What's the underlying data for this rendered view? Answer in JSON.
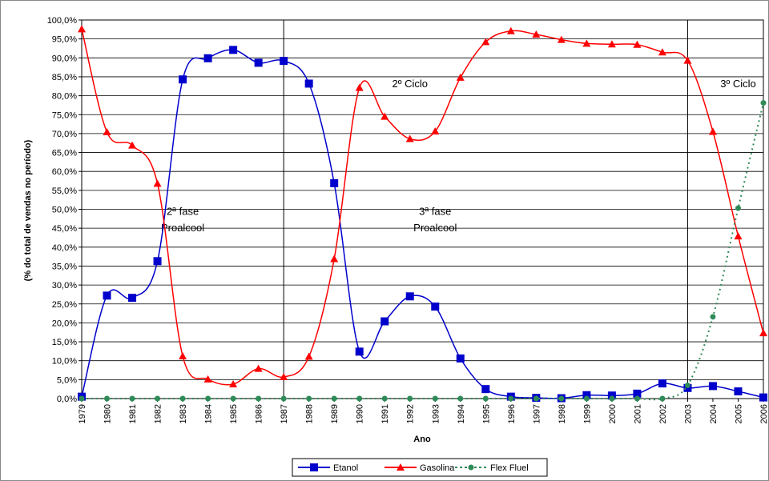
{
  "chart_data": {
    "type": "line",
    "title": "",
    "xlabel": "Ano",
    "ylabel": "(% do total de vendas no período)",
    "ylim": [
      0,
      100
    ],
    "y_step": 5,
    "grid": "horizontal",
    "legend_position": "bottom",
    "categories": [
      "1979",
      "1980",
      "1981",
      "1982",
      "1983",
      "1984",
      "1985",
      "1986",
      "1987",
      "1988",
      "1989",
      "1990",
      "1991",
      "1992",
      "1993",
      "1994",
      "1995",
      "1996",
      "1997",
      "1998",
      "1999",
      "2000",
      "2001",
      "2002",
      "2003",
      "2004",
      "2005",
      "2006"
    ],
    "y_tick_labels": [
      "0,0%",
      "5,0%",
      "10,0%",
      "15,0%",
      "20,0%",
      "25,0%",
      "30,0%",
      "35,0%",
      "40,0%",
      "45,0%",
      "50,0%",
      "55,0%",
      "60,0%",
      "65,0%",
      "70,0%",
      "75,0%",
      "80,0%",
      "85,0%",
      "90,0%",
      "95,0%",
      "100,0%"
    ],
    "series": [
      {
        "name": "Etanol",
        "color": "#0000cc",
        "marker": "square",
        "dashed": false,
        "values": [
          0.5,
          27.2,
          26.6,
          36.3,
          84.3,
          89.9,
          92.1,
          88.7,
          89.2,
          83.2,
          56.9,
          12.4,
          20.4,
          27.0,
          24.3,
          10.6,
          2.5,
          0.5,
          0.2,
          0.1,
          0.9,
          0.8,
          1.3,
          4.0,
          2.8,
          3.3,
          1.9,
          0.3
        ]
      },
      {
        "name": "Gasolina",
        "color": "#ff0000",
        "marker": "triangle",
        "dashed": false,
        "values": [
          97.6,
          70.4,
          66.9,
          56.8,
          11.2,
          5.1,
          3.8,
          7.9,
          5.7,
          11.1,
          36.9,
          82.1,
          74.5,
          68.6,
          70.6,
          84.8,
          94.2,
          97.1,
          96.2,
          94.8,
          93.8,
          93.6,
          93.5,
          91.5,
          89.3,
          70.5,
          42.9,
          17.3
        ]
      },
      {
        "name": "Flex Fluel",
        "color": "#2e8b57",
        "marker": "circle",
        "dashed": true,
        "values": [
          0,
          0,
          0,
          0,
          0,
          0,
          0,
          0,
          0,
          0,
          0,
          0,
          0,
          0,
          0,
          0,
          0,
          0,
          0,
          0,
          0,
          0,
          0,
          0,
          3.5,
          21.6,
          50.3,
          78.1
        ]
      }
    ],
    "annotations": [
      {
        "text": "2ª fase",
        "x": "1983",
        "y": 48.5
      },
      {
        "text": "Proalcool",
        "x": "1983",
        "y": 44.2
      },
      {
        "text": "2º Ciclo",
        "x": "1992",
        "y": 82.2
      },
      {
        "text": "3ª fase",
        "x": "1993",
        "y": 48.5
      },
      {
        "text": "Proalcool",
        "x": "1993",
        "y": 44.2
      },
      {
        "text": "3º Ciclo",
        "x": "2005",
        "y": 82.2
      }
    ],
    "vertical_lines": [
      {
        "x": "1987",
        "y_from": 0,
        "y_to": 45.5
      },
      {
        "x": "1987",
        "y_from": 45.5,
        "y_to": 100
      },
      {
        "x": "2003",
        "y_from": 0,
        "y_to": 100
      }
    ]
  }
}
